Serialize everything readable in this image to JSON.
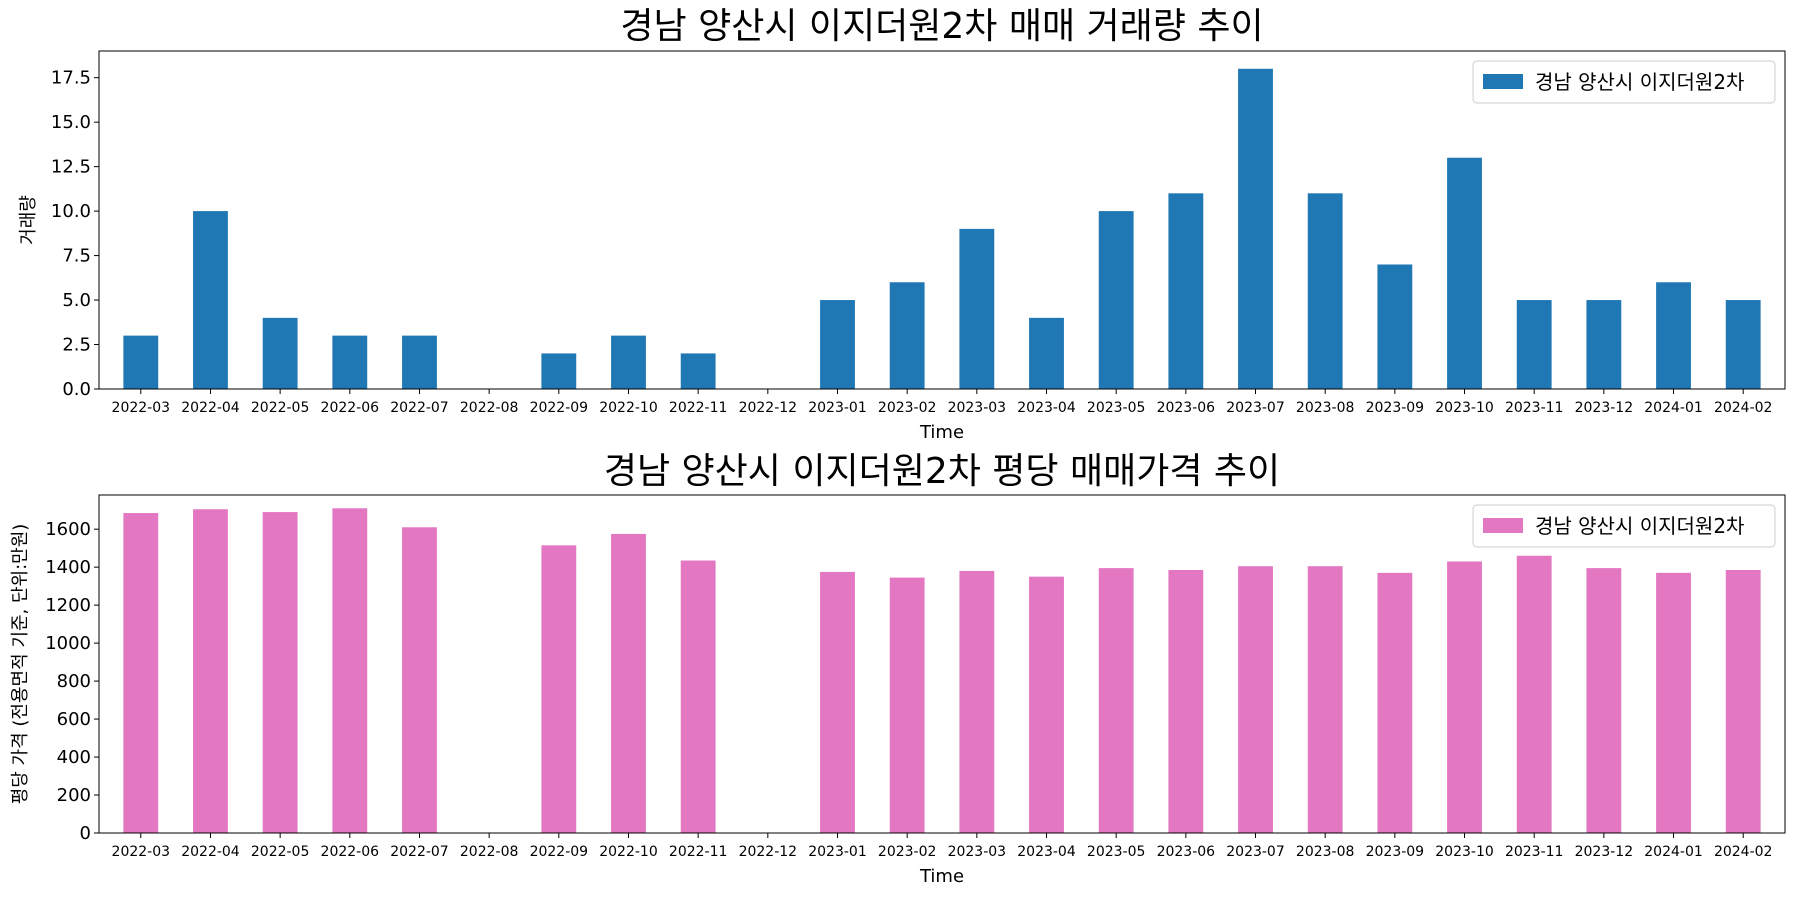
{
  "chart_data": [
    {
      "type": "bar",
      "title": "경남 양산시 이지더원2차 매매 거래량 추이",
      "xlabel": "Time",
      "ylabel": "거래량",
      "legend_position": "top-right",
      "ylim": [
        0,
        19
      ],
      "yticks": [
        "0.0",
        "2.5",
        "5.0",
        "7.5",
        "10.0",
        "12.5",
        "15.0",
        "17.5"
      ],
      "ytick_values": [
        0,
        2.5,
        5,
        7.5,
        10,
        12.5,
        15,
        17.5
      ],
      "color": "#1f77b4",
      "categories": [
        "2022-03",
        "2022-04",
        "2022-05",
        "2022-06",
        "2022-07",
        "2022-08",
        "2022-09",
        "2022-10",
        "2022-11",
        "2022-12",
        "2023-01",
        "2023-02",
        "2023-03",
        "2023-04",
        "2023-05",
        "2023-06",
        "2023-07",
        "2023-08",
        "2023-09",
        "2023-10",
        "2023-11",
        "2023-12",
        "2024-01",
        "2024-02"
      ],
      "series": [
        {
          "name": "경남 양산시 이지더원2차",
          "values": [
            3,
            10,
            4,
            3,
            3,
            0,
            2,
            3,
            2,
            0,
            5,
            6,
            9,
            4,
            10,
            11,
            18,
            11,
            7,
            13,
            5,
            5,
            6,
            5
          ]
        }
      ]
    },
    {
      "type": "bar",
      "title": "경남 양산시 이지더원2차 평당 매매가격 추이",
      "xlabel": "Time",
      "ylabel": "평당 가격 (전용면적 기준, 단위:만원)",
      "legend_position": "top-right",
      "ylim": [
        0,
        1780
      ],
      "yticks": [
        "0",
        "200",
        "400",
        "600",
        "800",
        "1000",
        "1200",
        "1400",
        "1600"
      ],
      "ytick_values": [
        0,
        200,
        400,
        600,
        800,
        1000,
        1200,
        1400,
        1600
      ],
      "color": "#e377c2",
      "categories": [
        "2022-03",
        "2022-04",
        "2022-05",
        "2022-06",
        "2022-07",
        "2022-08",
        "2022-09",
        "2022-10",
        "2022-11",
        "2022-12",
        "2023-01",
        "2023-02",
        "2023-03",
        "2023-04",
        "2023-05",
        "2023-06",
        "2023-07",
        "2023-08",
        "2023-09",
        "2023-10",
        "2023-11",
        "2023-12",
        "2024-01",
        "2024-02"
      ],
      "series": [
        {
          "name": "경남 양산시 이지더원2차",
          "values": [
            1685,
            1705,
            1690,
            1710,
            1610,
            0,
            1515,
            1575,
            1435,
            0,
            1375,
            1345,
            1380,
            1350,
            1395,
            1385,
            1405,
            1405,
            1370,
            1430,
            1460,
            1395,
            1370,
            1385
          ]
        }
      ]
    }
  ]
}
